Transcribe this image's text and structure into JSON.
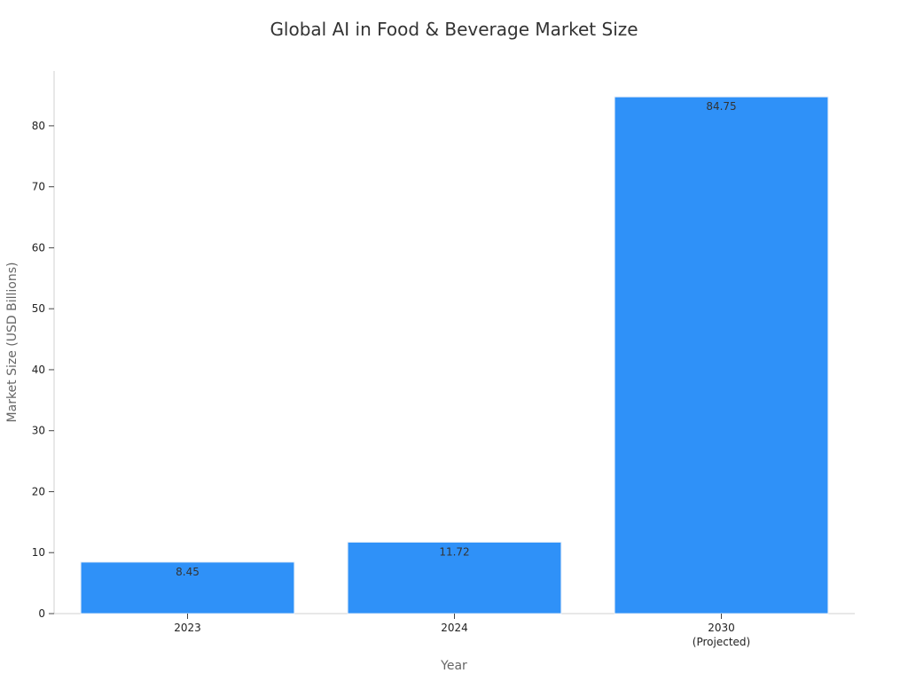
{
  "chart_data": {
    "type": "bar",
    "title": "Global AI in Food & Beverage Market Size",
    "xlabel": "Year",
    "ylabel": "Market Size (USD Billions)",
    "categories": [
      [
        "2023"
      ],
      [
        "2024"
      ],
      [
        "2030",
        "(Projected)"
      ]
    ],
    "values": [
      8.45,
      11.72,
      84.75
    ],
    "value_labels": [
      "8.45",
      "11.72",
      "84.75"
    ],
    "ylim": [
      0,
      89
    ],
    "yticks": [
      0,
      10,
      20,
      30,
      40,
      50,
      60,
      70,
      80
    ],
    "grid": false,
    "legend": "none",
    "bar_color": "#2f91f8"
  }
}
